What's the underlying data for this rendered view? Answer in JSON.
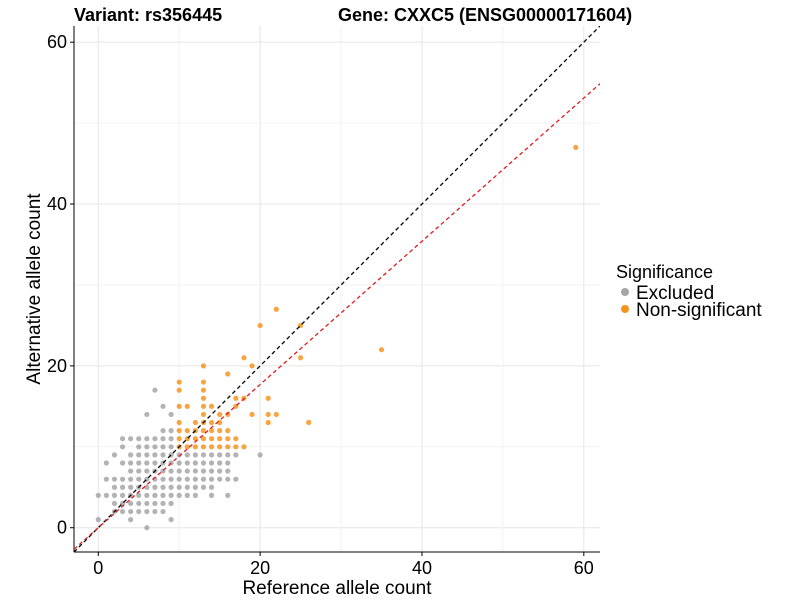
{
  "chart_data": {
    "type": "scatter",
    "title_left": "Variant: rs356445",
    "title_right": "Gene: CXXC5 (ENSG00000171604)",
    "xlabel": "Reference allele count",
    "ylabel": "Alternative allele count",
    "xlim": [
      -3,
      62
    ],
    "ylim": [
      -3,
      62
    ],
    "xticks": [
      0,
      20,
      40,
      60
    ],
    "yticks": [
      0,
      20,
      40,
      60
    ],
    "grid": true,
    "legend": {
      "title": "Significance",
      "position": "right",
      "entries": [
        {
          "label": "Excluded",
          "color": "#a6a6a6"
        },
        {
          "label": "Non-significant",
          "color": "#f7941d"
        }
      ]
    },
    "reference_lines": [
      {
        "name": "identity",
        "slope": 1.0,
        "intercept": 0,
        "color": "#000000",
        "dash": true
      },
      {
        "name": "fit",
        "slope": 0.885,
        "intercept": 0,
        "color": "#e41a1c",
        "dash": true
      }
    ],
    "series": [
      {
        "name": "Excluded",
        "color": "#a6a6a6",
        "points": [
          [
            0,
            1
          ],
          [
            0,
            4
          ],
          [
            1,
            4
          ],
          [
            1,
            6
          ],
          [
            1,
            8
          ],
          [
            2,
            2
          ],
          [
            2,
            3
          ],
          [
            2,
            4
          ],
          [
            2,
            5
          ],
          [
            2,
            6
          ],
          [
            2,
            9
          ],
          [
            3,
            2
          ],
          [
            3,
            3
          ],
          [
            3,
            4
          ],
          [
            3,
            5
          ],
          [
            3,
            6
          ],
          [
            3,
            8
          ],
          [
            3,
            10
          ],
          [
            3,
            11
          ],
          [
            4,
            1
          ],
          [
            4,
            2
          ],
          [
            4,
            3
          ],
          [
            4,
            4
          ],
          [
            4,
            5
          ],
          [
            4,
            6
          ],
          [
            4,
            7
          ],
          [
            4,
            8
          ],
          [
            4,
            9
          ],
          [
            4,
            11
          ],
          [
            5,
            2
          ],
          [
            5,
            3
          ],
          [
            5,
            4
          ],
          [
            5,
            5
          ],
          [
            5,
            6
          ],
          [
            5,
            7
          ],
          [
            5,
            8
          ],
          [
            5,
            9
          ],
          [
            5,
            10
          ],
          [
            5,
            11
          ],
          [
            6,
            0
          ],
          [
            6,
            2
          ],
          [
            6,
            3
          ],
          [
            6,
            4
          ],
          [
            6,
            5
          ],
          [
            6,
            6
          ],
          [
            6,
            7
          ],
          [
            6,
            8
          ],
          [
            6,
            9
          ],
          [
            6,
            10
          ],
          [
            6,
            11
          ],
          [
            6,
            14
          ],
          [
            7,
            2
          ],
          [
            7,
            3
          ],
          [
            7,
            4
          ],
          [
            7,
            5
          ],
          [
            7,
            6
          ],
          [
            7,
            7
          ],
          [
            7,
            8
          ],
          [
            7,
            9
          ],
          [
            7,
            10
          ],
          [
            7,
            11
          ],
          [
            7,
            17
          ],
          [
            8,
            2
          ],
          [
            8,
            3
          ],
          [
            8,
            4
          ],
          [
            8,
            5
          ],
          [
            8,
            6
          ],
          [
            8,
            7
          ],
          [
            8,
            8
          ],
          [
            8,
            9
          ],
          [
            8,
            10
          ],
          [
            8,
            11
          ],
          [
            8,
            12
          ],
          [
            8,
            15
          ],
          [
            9,
            1
          ],
          [
            9,
            3
          ],
          [
            9,
            4
          ],
          [
            9,
            5
          ],
          [
            9,
            6
          ],
          [
            9,
            7
          ],
          [
            9,
            8
          ],
          [
            9,
            9
          ],
          [
            9,
            10
          ],
          [
            9,
            11
          ],
          [
            9,
            12
          ],
          [
            9,
            14
          ],
          [
            10,
            4
          ],
          [
            10,
            5
          ],
          [
            10,
            6
          ],
          [
            10,
            7
          ],
          [
            10,
            8
          ],
          [
            10,
            9
          ],
          [
            11,
            4
          ],
          [
            11,
            5
          ],
          [
            11,
            6
          ],
          [
            11,
            7
          ],
          [
            11,
            8
          ],
          [
            11,
            9
          ],
          [
            12,
            4
          ],
          [
            12,
            5
          ],
          [
            12,
            6
          ],
          [
            12,
            7
          ],
          [
            12,
            8
          ],
          [
            12,
            9
          ],
          [
            13,
            5
          ],
          [
            13,
            6
          ],
          [
            13,
            7
          ],
          [
            13,
            8
          ],
          [
            13,
            9
          ],
          [
            14,
            4
          ],
          [
            14,
            5
          ],
          [
            14,
            6
          ],
          [
            14,
            7
          ],
          [
            14,
            8
          ],
          [
            14,
            9
          ],
          [
            15,
            6
          ],
          [
            15,
            7
          ],
          [
            15,
            8
          ],
          [
            15,
            9
          ],
          [
            16,
            4
          ],
          [
            16,
            6
          ],
          [
            16,
            7
          ],
          [
            16,
            8
          ],
          [
            16,
            9
          ],
          [
            17,
            6
          ],
          [
            17,
            9
          ],
          [
            20,
            9
          ]
        ]
      },
      {
        "name": "Non-significant",
        "color": "#f7941d",
        "points": [
          [
            10,
            10
          ],
          [
            10,
            11
          ],
          [
            10,
            12
          ],
          [
            10,
            13
          ],
          [
            10,
            15
          ],
          [
            10,
            17
          ],
          [
            10,
            18
          ],
          [
            11,
            10
          ],
          [
            11,
            11
          ],
          [
            11,
            12
          ],
          [
            11,
            15
          ],
          [
            12,
            10
          ],
          [
            12,
            11
          ],
          [
            12,
            12
          ],
          [
            12,
            13
          ],
          [
            13,
            10
          ],
          [
            13,
            11
          ],
          [
            13,
            12
          ],
          [
            13,
            13
          ],
          [
            13,
            14
          ],
          [
            13,
            15
          ],
          [
            13,
            16
          ],
          [
            13,
            17
          ],
          [
            13,
            18
          ],
          [
            13,
            20
          ],
          [
            14,
            10
          ],
          [
            14,
            11
          ],
          [
            14,
            12
          ],
          [
            14,
            13
          ],
          [
            14,
            15
          ],
          [
            15,
            10
          ],
          [
            15,
            11
          ],
          [
            15,
            12
          ],
          [
            15,
            13
          ],
          [
            15,
            14
          ],
          [
            16,
            10
          ],
          [
            16,
            11
          ],
          [
            16,
            12
          ],
          [
            16,
            14
          ],
          [
            16,
            19
          ],
          [
            17,
            10
          ],
          [
            17,
            11
          ],
          [
            17,
            15
          ],
          [
            17,
            16
          ],
          [
            18,
            10
          ],
          [
            18,
            16
          ],
          [
            18,
            21
          ],
          [
            19,
            14
          ],
          [
            19,
            20
          ],
          [
            20,
            25
          ],
          [
            21,
            13
          ],
          [
            21,
            14
          ],
          [
            21,
            16
          ],
          [
            22,
            14
          ],
          [
            22,
            27
          ],
          [
            25,
            21
          ],
          [
            25,
            25
          ],
          [
            26,
            13
          ],
          [
            35,
            22
          ],
          [
            59,
            47
          ]
        ]
      }
    ]
  }
}
